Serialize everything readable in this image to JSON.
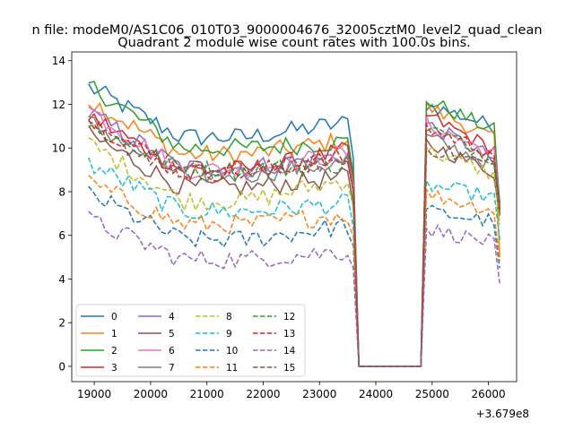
{
  "chart_data": {
    "type": "line",
    "suptitle": "n file: modeM0/AS1C06_010T03_9000004676_32005cztM0_level2_quad_clean",
    "title": "Quadrant 2 module wise count rates with 100.0s bins.",
    "xlabel": "",
    "ylabel": "",
    "x_offset_label": "+3.679e8",
    "xlim": [
      18600,
      26500
    ],
    "ylim": [
      -0.7,
      14.4
    ],
    "x_ticks": [
      19000,
      20000,
      21000,
      22000,
      23000,
      24000,
      25000,
      26000
    ],
    "x_tick_labels": [
      "19000",
      "20000",
      "21000",
      "22000",
      "23000",
      "24000",
      "25000",
      "26000"
    ],
    "y_ticks": [
      0,
      2,
      4,
      6,
      8,
      10,
      12,
      14
    ],
    "y_tick_labels": [
      "0",
      "2",
      "4",
      "6",
      "8",
      "10",
      "12",
      "14"
    ],
    "grid": false,
    "legend_position": "lower-left",
    "legend_columns": 4,
    "x_start": 18900,
    "bin": 100,
    "segment1_end": 23600,
    "gap_start": 23700,
    "gap_end": 24800,
    "segment2_start": 24900,
    "segment2_end": 26200,
    "series": [
      {
        "name": "0",
        "color": "#1f77b4",
        "dash": "solid",
        "seg1_start": 12.8,
        "seg1_mid": 10.5,
        "seg1_end": 11.2,
        "seg2_start": 12.0,
        "seg2_end": 10.9,
        "last": 7.5
      },
      {
        "name": "1",
        "color": "#ff7f0e",
        "dash": "solid",
        "seg1_start": 12.2,
        "seg1_mid": 9.7,
        "seg1_end": 10.4,
        "seg2_start": 11.9,
        "seg2_end": 10.3,
        "last": 5.0
      },
      {
        "name": "2",
        "color": "#2ca02c",
        "dash": "solid",
        "seg1_start": 12.9,
        "seg1_mid": 10.0,
        "seg1_end": 10.3,
        "seg2_start": 12.2,
        "seg2_end": 10.7,
        "last": 7.0
      },
      {
        "name": "3",
        "color": "#d62728",
        "dash": "solid",
        "seg1_start": 11.5,
        "seg1_mid": 9.0,
        "seg1_end": 9.9,
        "seg2_start": 11.5,
        "seg2_end": 9.8,
        "last": 7.1
      },
      {
        "name": "4",
        "color": "#9467bd",
        "dash": "solid",
        "seg1_start": 11.6,
        "seg1_mid": 9.1,
        "seg1_end": 9.7,
        "seg2_start": 11.1,
        "seg2_end": 9.4,
        "last": 7.0
      },
      {
        "name": "5",
        "color": "#8c564b",
        "dash": "solid",
        "seg1_start": 10.6,
        "seg1_mid": 8.2,
        "seg1_end": 8.7,
        "seg2_start": 10.2,
        "seg2_end": 8.8,
        "last": 6.9
      },
      {
        "name": "6",
        "color": "#e377c2",
        "dash": "solid",
        "seg1_start": 11.8,
        "seg1_mid": 9.0,
        "seg1_end": 9.8,
        "seg2_start": 11.1,
        "seg2_end": 9.6,
        "last": 7.3
      },
      {
        "name": "7",
        "color": "#7f7f7f",
        "dash": "solid",
        "seg1_start": 11.2,
        "seg1_mid": 8.8,
        "seg1_end": 9.4,
        "seg2_start": 10.5,
        "seg2_end": 9.1,
        "last": 7.2
      },
      {
        "name": "8",
        "color": "#bcbd22",
        "dash": "dashed",
        "seg1_start": 10.2,
        "seg1_mid": 7.6,
        "seg1_end": 8.6,
        "seg2_start": 9.9,
        "seg2_end": 8.7,
        "last": 6.5
      },
      {
        "name": "9",
        "color": "#17becf",
        "dash": "dashed",
        "seg1_start": 9.3,
        "seg1_mid": 7.1,
        "seg1_end": 7.5,
        "seg2_start": 8.3,
        "seg2_end": 7.7,
        "last": 5.8
      },
      {
        "name": "10",
        "color": "#1f77b4",
        "dash": "dashed",
        "seg1_start": 7.9,
        "seg1_mid": 5.8,
        "seg1_end": 6.5,
        "seg2_start": 7.1,
        "seg2_end": 6.6,
        "last": 4.5
      },
      {
        "name": "11",
        "color": "#ff7f0e",
        "dash": "dashed",
        "seg1_start": 8.4,
        "seg1_mid": 6.5,
        "seg1_end": 7.0,
        "seg2_start": 7.9,
        "seg2_end": 7.1,
        "last": 4.8
      },
      {
        "name": "12",
        "color": "#2ca02c",
        "dash": "dashed",
        "seg1_start": 11.0,
        "seg1_mid": 9.0,
        "seg1_end": 9.3,
        "seg2_start": 11.0,
        "seg2_end": 9.4,
        "last": 7.0
      },
      {
        "name": "13",
        "color": "#d62728",
        "dash": "dashed",
        "seg1_start": 11.3,
        "seg1_mid": 8.9,
        "seg1_end": 9.6,
        "seg2_start": 10.9,
        "seg2_end": 9.7,
        "last": 7.2
      },
      {
        "name": "14",
        "color": "#9467bd",
        "dash": "dashed",
        "seg1_start": 6.7,
        "seg1_mid": 4.9,
        "seg1_end": 5.3,
        "seg2_start": 6.3,
        "seg2_end": 5.6,
        "last": 3.8
      },
      {
        "name": "15",
        "color": "#8c564b",
        "dash": "dashed",
        "seg1_start": 10.8,
        "seg1_mid": 9.0,
        "seg1_end": 9.4,
        "seg2_start": 10.0,
        "seg2_end": 9.2,
        "last": 7.4
      }
    ]
  }
}
